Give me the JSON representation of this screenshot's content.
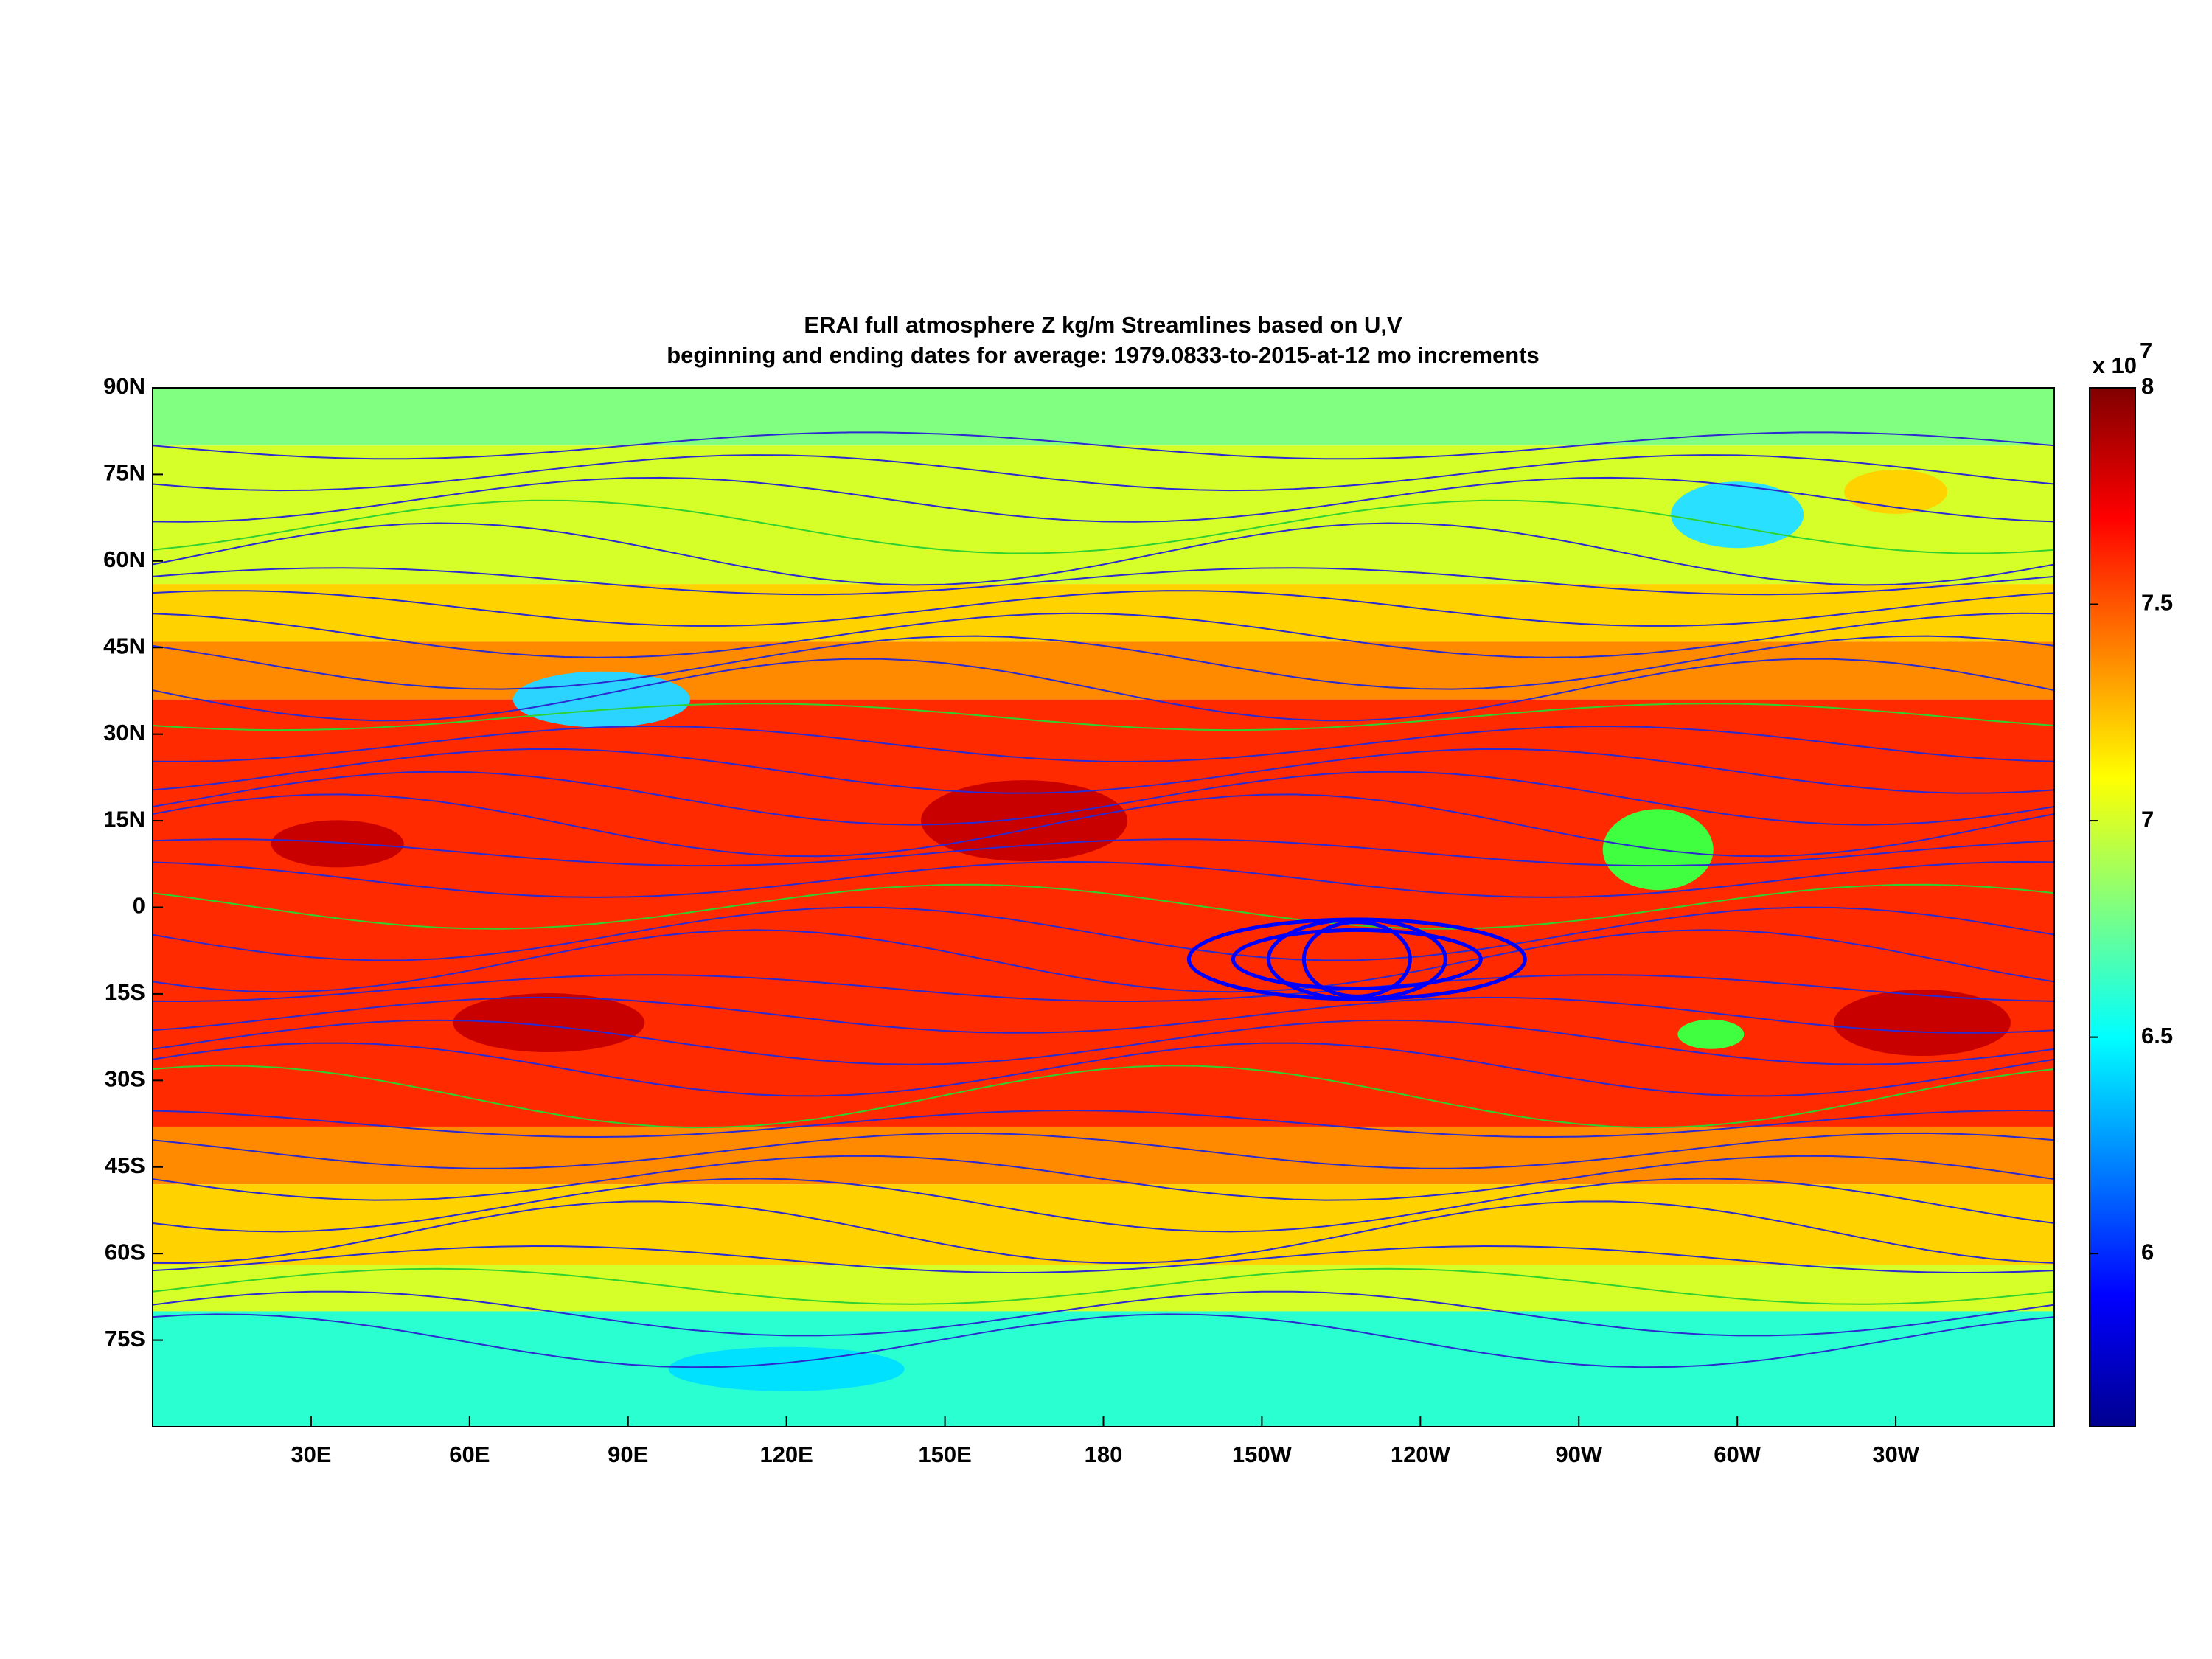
{
  "chart_data": {
    "type": "contour-map",
    "title": [
      "ERAI full atmosphere   Z kg/m   Streamlines based on U,V",
      "beginning and ending dates for average:  1979.0833-to-2015-at-12 mo increments"
    ],
    "xlim": [
      0,
      360
    ],
    "xticks": [
      {
        "value": 30,
        "label": "30E"
      },
      {
        "value": 60,
        "label": "60E"
      },
      {
        "value": 90,
        "label": "90E"
      },
      {
        "value": 120,
        "label": "120E"
      },
      {
        "value": 150,
        "label": "150E"
      },
      180,
      {
        "value": 210,
        "label": "150W"
      },
      {
        "value": 240,
        "label": "120W"
      },
      {
        "value": 270,
        "label": "90W"
      },
      {
        "value": 300,
        "label": "60W"
      },
      {
        "value": 330,
        "label": "30W"
      }
    ],
    "ylim": [
      -90,
      90
    ],
    "yticks": [
      {
        "value": 90,
        "label": "90N"
      },
      {
        "value": 75,
        "label": "75N"
      },
      {
        "value": 60,
        "label": "60N"
      },
      {
        "value": 45,
        "label": "45N"
      },
      {
        "value": 30,
        "label": "30N"
      },
      {
        "value": 15,
        "label": "15N"
      },
      0,
      {
        "value": -15,
        "label": "15S"
      },
      {
        "value": -30,
        "label": "30S"
      },
      {
        "value": -45,
        "label": "45S"
      },
      {
        "value": -60,
        "label": "60S"
      },
      {
        "value": -75,
        "label": "75S"
      }
    ],
    "colorbar": {
      "clim": [
        5.6,
        8
      ],
      "ticks": [
        6,
        6.5,
        7,
        7.5,
        8
      ],
      "multiplier_label": "x 10",
      "multiplier_exponent": "7"
    }
  }
}
